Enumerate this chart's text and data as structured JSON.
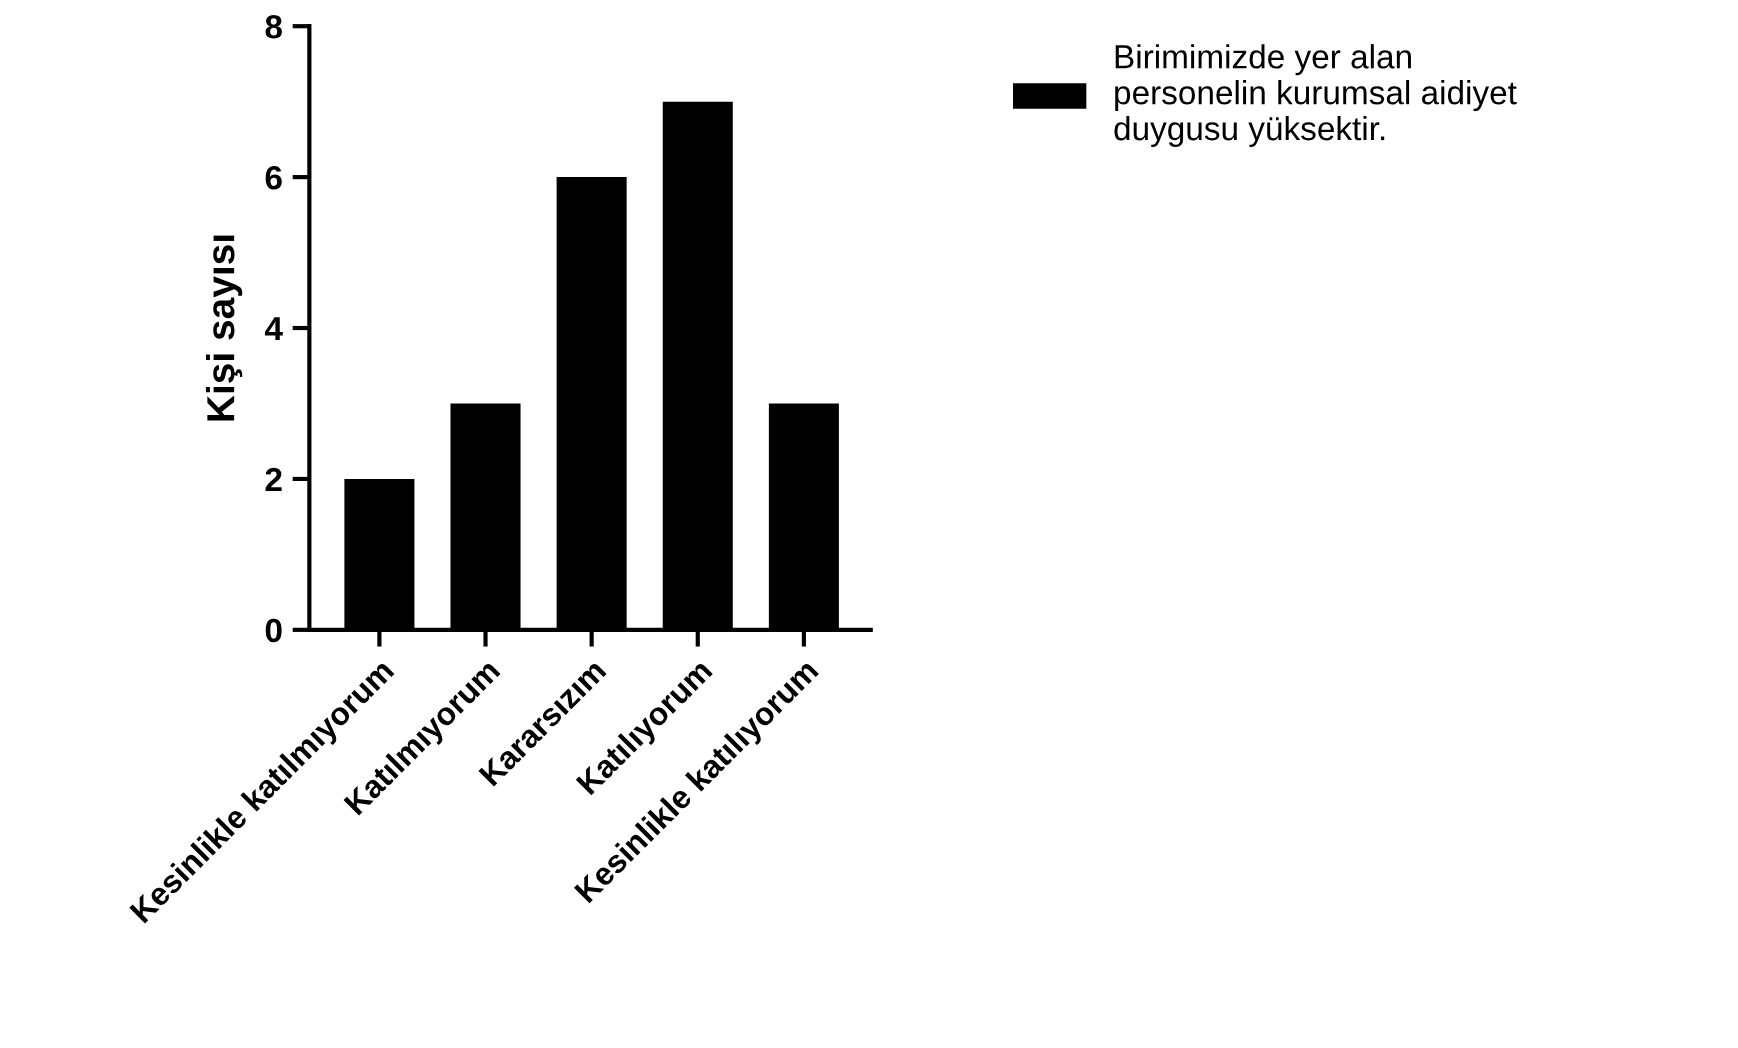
{
  "chart_data": {
    "type": "bar",
    "ylabel": "Kişi sayısı",
    "categories": [
      "Kesinlikle katılmıyorum",
      "Katılmıyorum",
      "Kararsızım",
      "Katılıyorum",
      "Kesinlikle katılıyorum"
    ],
    "series": [
      {
        "name": "Birimimizde yer alan\npersonelin kurumsal aidiyet\nduygusu yüksektir.",
        "color": "#000000",
        "values": [
          2,
          3,
          6,
          7,
          3
        ]
      }
    ],
    "ylim": [
      0,
      8
    ],
    "yticks": [
      0,
      2,
      4,
      6,
      8
    ],
    "grid": false,
    "legend": "top right"
  }
}
